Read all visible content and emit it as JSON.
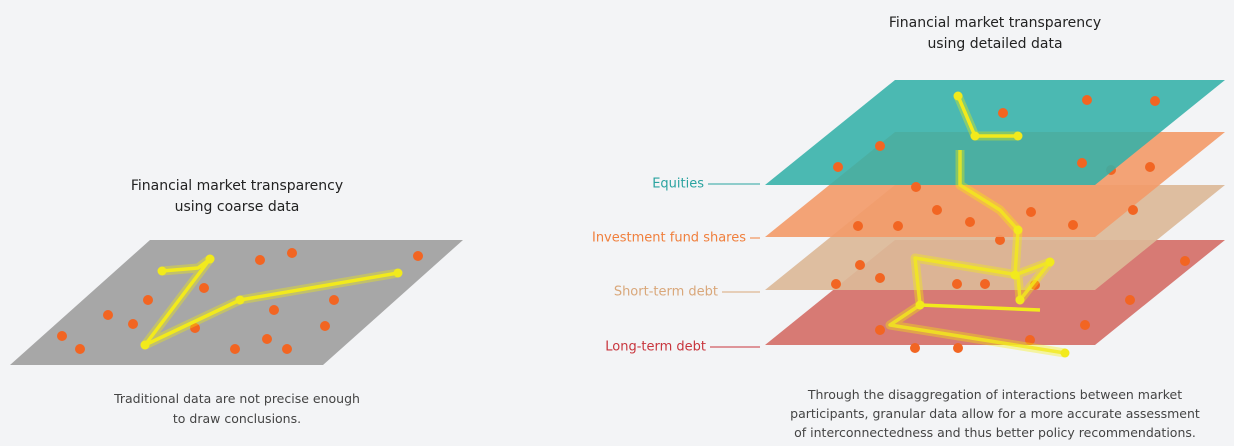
{
  "left": {
    "title": [
      "Financial market transparency",
      "using coarse data"
    ],
    "caption": [
      "Traditional data are not precise enough",
      "to draw conclusions."
    ]
  },
  "right": {
    "title": [
      "Financial market transparency",
      "using detailed data"
    ],
    "layers": [
      {
        "label": "Equities"
      },
      {
        "label": "Investment fund shares"
      },
      {
        "label": "Short-term debt"
      },
      {
        "label": "Long-term debt"
      }
    ],
    "caption": [
      "Through the disaggregation of interactions between market",
      "participants, granular data allow for a more accurate assessment",
      "of interconnectedness and thus better policy recommendations."
    ]
  }
}
